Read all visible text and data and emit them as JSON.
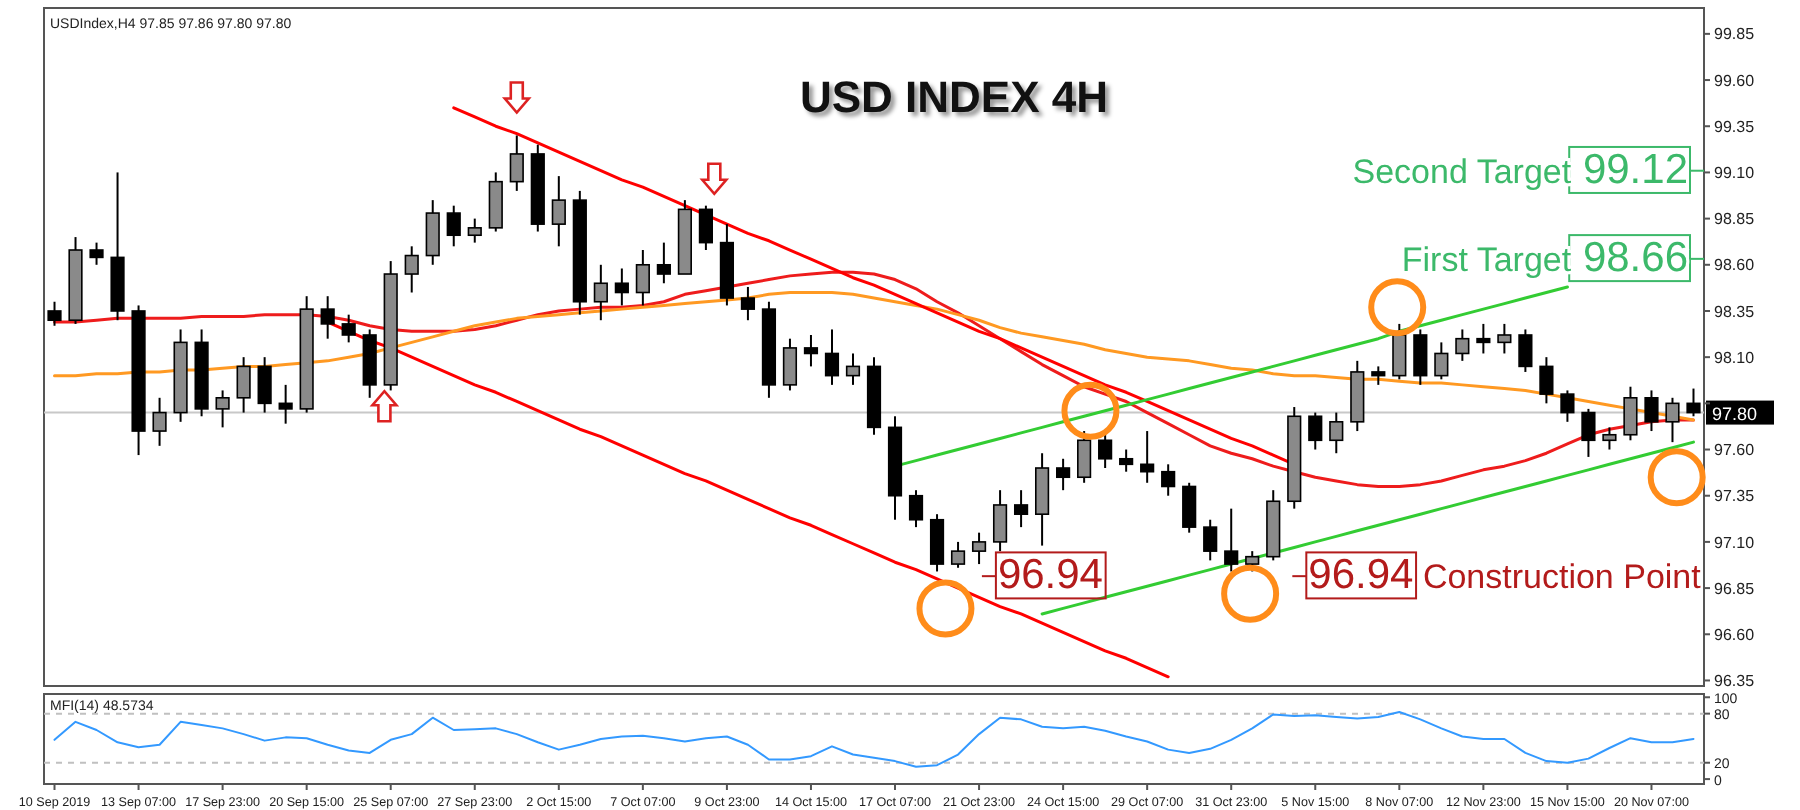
{
  "chart_data": [
    {
      "type": "candlestick",
      "title": "USD INDEX 4H",
      "color": "#000000",
      "ylim": [
        96.32,
        99.99
      ],
      "tick_labels": "y",
      "yticks": [
        99.85,
        {
          "value": 99.6,
          "label": "99.60"
        },
        99.35,
        {
          "value": 99.1,
          "label": "99.10"
        },
        98.85,
        {
          "value": 98.6,
          "label": "98.60"
        },
        98.35,
        {
          "value": 98.1,
          "label": "98.10"
        },
        {
          "value": 97.85,
          "label": null
        },
        {
          "value": 97.6,
          "label": "97.60"
        },
        97.35,
        {
          "value": 97.1,
          "label": "97.10"
        },
        96.85,
        {
          "value": 96.6,
          "label": "96.60"
        },
        96.35
      ],
      "categories": [
        null,
        null,
        null,
        null,
        null,
        null,
        null,
        null,
        null,
        null,
        null,
        null,
        null,
        null,
        null,
        null,
        null,
        null,
        null,
        null,
        null,
        null,
        null,
        null,
        null,
        null,
        null,
        null,
        null,
        null,
        null,
        null,
        null,
        null,
        null,
        null,
        null,
        null,
        null,
        null,
        null,
        null,
        null,
        null,
        null,
        null,
        null,
        null,
        null,
        null,
        null,
        null,
        null,
        null,
        null,
        null,
        null,
        null,
        null,
        null,
        null,
        null,
        null,
        null,
        null,
        null,
        null,
        null,
        null,
        null,
        null,
        null,
        null,
        null,
        null,
        null,
        null,
        null,
        null
      ],
      "ohlc": [
        [
          98.35,
          98.4,
          98.27,
          98.3
        ],
        [
          98.3,
          98.75,
          98.28,
          98.68
        ],
        [
          98.68,
          98.72,
          98.6,
          98.64
        ],
        [
          98.64,
          99.1,
          98.3,
          98.35
        ],
        [
          98.35,
          98.38,
          97.57,
          97.7
        ],
        [
          97.7,
          97.88,
          97.62,
          97.8
        ],
        [
          97.8,
          98.25,
          97.75,
          98.18
        ],
        [
          98.18,
          98.25,
          97.78,
          97.82
        ],
        [
          97.82,
          97.92,
          97.72,
          97.88
        ],
        [
          97.88,
          98.1,
          97.8,
          98.05
        ],
        [
          98.05,
          98.1,
          97.8,
          97.85
        ],
        [
          97.85,
          97.95,
          97.74,
          97.82
        ],
        [
          97.82,
          98.43,
          97.8,
          98.36
        ],
        [
          98.36,
          98.43,
          98.2,
          98.28
        ],
        [
          98.28,
          98.33,
          98.18,
          98.22
        ],
        [
          98.22,
          98.25,
          97.88,
          97.95
        ],
        [
          97.95,
          98.62,
          97.92,
          98.55
        ],
        [
          98.55,
          98.7,
          98.45,
          98.65
        ],
        [
          98.65,
          98.95,
          98.6,
          98.88
        ],
        [
          98.88,
          98.92,
          98.7,
          98.76
        ],
        [
          98.76,
          98.85,
          98.72,
          98.8
        ],
        [
          98.8,
          99.1,
          98.78,
          99.05
        ],
        [
          99.05,
          99.3,
          99.0,
          99.2
        ],
        [
          99.2,
          99.25,
          98.78,
          98.82
        ],
        [
          98.82,
          99.08,
          98.7,
          98.95
        ],
        [
          98.95,
          99.0,
          98.33,
          98.4
        ],
        [
          98.4,
          98.6,
          98.3,
          98.5
        ],
        [
          98.5,
          98.58,
          98.38,
          98.45
        ],
        [
          98.45,
          98.68,
          98.38,
          98.6
        ],
        [
          98.6,
          98.72,
          98.5,
          98.55
        ],
        [
          98.55,
          98.95,
          98.55,
          98.9
        ],
        [
          98.9,
          98.92,
          98.68,
          98.72
        ],
        [
          98.72,
          98.82,
          98.38,
          98.42
        ],
        [
          98.42,
          98.48,
          98.3,
          98.36
        ],
        [
          98.36,
          98.4,
          97.88,
          97.95
        ],
        [
          97.95,
          98.2,
          97.92,
          98.15
        ],
        [
          98.15,
          98.22,
          98.05,
          98.12
        ],
        [
          98.12,
          98.25,
          97.95,
          98.0
        ],
        [
          98.0,
          98.12,
          97.95,
          98.05
        ],
        [
          98.05,
          98.1,
          97.68,
          97.72
        ],
        [
          97.72,
          97.78,
          97.22,
          97.35
        ],
        [
          97.35,
          97.38,
          97.18,
          97.22
        ],
        [
          97.22,
          97.25,
          96.94,
          96.98
        ],
        [
          96.98,
          97.1,
          96.96,
          97.05
        ],
        [
          97.05,
          97.15,
          96.98,
          97.1
        ],
        [
          97.1,
          97.38,
          97.05,
          97.3
        ],
        [
          97.3,
          97.38,
          97.18,
          97.25
        ],
        [
          97.25,
          97.58,
          97.08,
          97.5
        ],
        [
          97.5,
          97.55,
          97.38,
          97.45
        ],
        [
          97.45,
          97.7,
          97.42,
          97.65
        ],
        [
          97.65,
          97.68,
          97.5,
          97.55
        ],
        [
          97.55,
          97.6,
          97.48,
          97.52
        ],
        [
          97.52,
          97.7,
          97.42,
          97.48
        ],
        [
          97.48,
          97.52,
          97.35,
          97.4
        ],
        [
          97.4,
          97.42,
          97.15,
          97.18
        ],
        [
          97.18,
          97.22,
          97.0,
          97.05
        ],
        [
          97.05,
          97.28,
          96.94,
          96.98
        ],
        [
          96.98,
          97.05,
          96.94,
          97.02
        ],
        [
          97.02,
          97.38,
          97.0,
          97.32
        ],
        [
          97.32,
          97.83,
          97.28,
          97.78
        ],
        [
          97.78,
          97.8,
          97.6,
          97.65
        ],
        [
          97.65,
          97.8,
          97.58,
          97.75
        ],
        [
          97.75,
          98.08,
          97.7,
          98.02
        ],
        [
          98.02,
          98.05,
          97.95,
          98.0
        ],
        [
          98.0,
          98.28,
          97.98,
          98.22
        ],
        [
          98.22,
          98.25,
          97.95,
          98.0
        ],
        [
          98.0,
          98.18,
          97.98,
          98.12
        ],
        [
          98.12,
          98.25,
          98.08,
          98.2
        ],
        [
          98.2,
          98.28,
          98.12,
          98.18
        ],
        [
          98.18,
          98.28,
          98.12,
          98.22
        ],
        [
          98.22,
          98.25,
          98.02,
          98.05
        ],
        [
          98.05,
          98.1,
          97.85,
          97.9
        ],
        [
          97.9,
          97.92,
          97.75,
          97.8
        ],
        [
          97.8,
          97.82,
          97.56,
          97.65
        ],
        [
          97.65,
          97.72,
          97.6,
          97.68
        ],
        [
          97.68,
          97.94,
          97.65,
          97.88
        ],
        [
          97.88,
          97.92,
          97.7,
          97.75
        ],
        [
          97.75,
          97.88,
          97.64,
          97.85
        ],
        [
          97.85,
          97.93,
          97.78,
          97.8
        ]
      ],
      "series": [
        {
          "type": "line",
          "color": "#ee1c1c",
          "values": [
            98.29,
            98.29,
            98.3,
            98.31,
            98.31,
            98.31,
            98.31,
            98.32,
            98.32,
            98.32,
            98.33,
            98.33,
            98.33,
            98.32,
            98.3,
            98.27,
            98.25,
            98.24,
            98.24,
            98.24,
            98.25,
            98.27,
            98.3,
            98.33,
            98.35,
            98.36,
            98.37,
            98.37,
            98.38,
            98.4,
            98.44,
            98.46,
            98.48,
            98.5,
            98.52,
            98.54,
            98.55,
            98.56,
            98.56,
            98.55,
            98.52,
            98.47,
            98.4,
            98.34,
            98.27,
            98.2,
            98.13,
            98.06,
            98.0,
            97.94,
            97.9,
            97.86,
            97.8,
            97.74,
            97.68,
            97.62,
            97.58,
            97.55,
            97.51,
            97.48,
            97.45,
            97.43,
            97.41,
            97.4,
            97.4,
            97.41,
            97.43,
            97.46,
            97.49,
            97.51,
            97.54,
            97.58,
            97.63,
            97.68,
            97.71,
            97.73,
            97.75,
            97.76,
            97.76
          ]
        },
        {
          "type": "line",
          "color": "#ff9922",
          "values": [
            98.0,
            98.0,
            98.01,
            98.01,
            98.02,
            98.02,
            98.03,
            98.03,
            98.04,
            98.05,
            98.05,
            98.06,
            98.07,
            98.08,
            98.1,
            98.12,
            98.15,
            98.18,
            98.21,
            98.24,
            98.27,
            98.29,
            98.31,
            98.32,
            98.33,
            98.34,
            98.35,
            98.36,
            98.37,
            98.38,
            98.39,
            98.4,
            98.41,
            98.42,
            98.44,
            98.45,
            98.45,
            98.45,
            98.44,
            98.42,
            98.4,
            98.38,
            98.36,
            98.33,
            98.3,
            98.26,
            98.23,
            98.21,
            98.19,
            98.17,
            98.14,
            98.12,
            98.1,
            98.09,
            98.08,
            98.06,
            98.04,
            98.03,
            98.01,
            98.0,
            98.0,
            97.99,
            97.98,
            97.98,
            97.97,
            97.96,
            97.96,
            97.95,
            97.94,
            97.93,
            97.92,
            97.9,
            97.88,
            97.86,
            97.84,
            97.82,
            97.8,
            97.78,
            97.76
          ]
        },
        {
          "type": "line",
          "color": "#ff0000",
          "values": [
            null,
            null,
            null,
            null,
            null,
            null,
            null,
            null,
            null,
            null,
            null,
            null,
            null,
            null,
            null,
            null,
            null,
            null,
            null,
            99.45,
            99.4,
            99.35,
            99.31,
            99.26,
            99.21,
            99.16,
            99.11,
            99.06,
            99.02,
            98.97,
            98.92,
            98.87,
            98.82,
            98.77,
            98.73,
            98.68,
            98.63,
            98.58,
            98.53,
            98.49,
            98.44,
            98.39,
            98.34,
            98.29,
            98.24,
            98.2,
            98.15,
            98.1,
            98.05,
            98.0,
            97.95,
            97.91,
            97.86,
            97.81,
            97.76,
            97.71,
            97.66,
            97.62,
            97.57,
            97.52,
            null,
            null,
            null,
            null,
            null,
            null,
            null,
            null,
            null,
            null,
            null,
            null,
            null,
            null,
            null,
            null,
            null,
            null,
            null
          ]
        },
        {
          "type": "line",
          "color": "#ff0000",
          "values": [
            null,
            null,
            null,
            null,
            null,
            null,
            null,
            null,
            null,
            null,
            null,
            null,
            null,
            98.29,
            98.24,
            98.19,
            98.15,
            98.1,
            98.05,
            98.0,
            97.95,
            97.91,
            97.86,
            97.81,
            97.76,
            97.71,
            97.67,
            97.62,
            97.57,
            97.52,
            97.47,
            97.43,
            97.38,
            97.33,
            97.28,
            97.23,
            97.19,
            97.14,
            97.09,
            97.04,
            96.99,
            96.95,
            96.9,
            96.85,
            96.8,
            96.75,
            96.71,
            96.66,
            96.61,
            96.56,
            96.51,
            96.47,
            96.42,
            96.37,
            null,
            null,
            null,
            null,
            null,
            null,
            null,
            null,
            null,
            null,
            null,
            null,
            null,
            null,
            null,
            null,
            null,
            null,
            null,
            null,
            null,
            null,
            null,
            null,
            null
          ]
        },
        {
          "type": "line",
          "color": "#33cc33",
          "values": [
            null,
            null,
            null,
            null,
            null,
            null,
            null,
            null,
            null,
            null,
            null,
            null,
            null,
            null,
            null,
            null,
            null,
            null,
            null,
            null,
            null,
            null,
            null,
            null,
            null,
            null,
            null,
            null,
            null,
            null,
            null,
            null,
            null,
            null,
            null,
            null,
            null,
            null,
            null,
            null,
            97.51,
            97.54,
            97.57,
            97.6,
            97.63,
            97.66,
            97.69,
            97.72,
            97.75,
            97.78,
            97.81,
            97.84,
            97.87,
            97.9,
            97.93,
            97.96,
            97.99,
            98.02,
            98.05,
            98.08,
            98.11,
            98.14,
            98.17,
            98.2,
            98.24,
            98.27,
            98.3,
            98.33,
            98.36,
            98.39,
            98.42,
            98.45,
            98.48,
            null,
            null,
            null,
            null,
            null,
            null
          ]
        },
        {
          "type": "line",
          "color": "#33cc33",
          "values": [
            null,
            null,
            null,
            null,
            null,
            null,
            null,
            null,
            null,
            null,
            null,
            null,
            null,
            null,
            null,
            null,
            null,
            null,
            null,
            null,
            null,
            null,
            null,
            null,
            null,
            null,
            null,
            null,
            null,
            null,
            null,
            null,
            null,
            null,
            null,
            null,
            null,
            null,
            null,
            null,
            null,
            null,
            null,
            null,
            null,
            null,
            null,
            96.71,
            96.74,
            96.77,
            96.8,
            96.83,
            96.86,
            96.89,
            96.92,
            96.95,
            96.98,
            97.01,
            97.04,
            97.07,
            97.1,
            97.13,
            97.16,
            97.19,
            97.22,
            97.25,
            97.28,
            97.31,
            97.34,
            97.37,
            97.4,
            97.43,
            97.46,
            97.49,
            97.52,
            97.55,
            97.58,
            97.61,
            97.64
          ]
        }
      ],
      "ref_lines": [
        {
          "axis": "y",
          "value": 97.8,
          "label": "97.80",
          "color": "#c8c8c8"
        }
      ],
      "annotations": [
        "USDIndex,H4 97.85 97.86 97.80 97.80",
        "Second Target 99.12",
        "First Target 98.66",
        "96.94",
        "96.94 Construction Point"
      ]
    },
    {
      "type": "line",
      "title": "MFI(14) 48.5734",
      "color": "#3399ff",
      "ylim": [
        -6,
        104
      ],
      "yticks": [
        0,
        20,
        80,
        100
      ],
      "categories": [
        "10 Sep 2019",
        null,
        null,
        null,
        "13 Sep 07:00",
        null,
        null,
        null,
        "17 Sep 23:00",
        null,
        null,
        null,
        "20 Sep 15:00",
        null,
        null,
        null,
        "25 Sep 07:00",
        null,
        null,
        null,
        "27 Sep 23:00",
        null,
        null,
        null,
        "2 Oct 15:00",
        null,
        null,
        null,
        "7 Oct 07:00",
        null,
        null,
        null,
        "9 Oct 23:00",
        null,
        null,
        null,
        "14 Oct 15:00",
        null,
        null,
        null,
        "17 Oct 07:00",
        null,
        null,
        null,
        "21 Oct 23:00",
        null,
        null,
        null,
        "24 Oct 15:00",
        null,
        null,
        null,
        "29 Oct 07:00",
        null,
        null,
        null,
        "31 Oct 23:00",
        null,
        null,
        null,
        "5 Nov 15:00",
        null,
        null,
        null,
        "8 Nov 07:00",
        null,
        null,
        null,
        "12 Nov 23:00",
        null,
        null,
        null,
        "15 Nov 15:00",
        null,
        null,
        null,
        "20 Nov 07:00",
        null,
        null
      ],
      "values": [
        48,
        70,
        60,
        45,
        39,
        42,
        70,
        66,
        62,
        55,
        47,
        51,
        50,
        42,
        35,
        32,
        48,
        55,
        75,
        60,
        61,
        62,
        55,
        45,
        36,
        42,
        49,
        52,
        53,
        50,
        46,
        50,
        52,
        42,
        24,
        24,
        28,
        40,
        30,
        26,
        22,
        15,
        17,
        30,
        55,
        75,
        73,
        64,
        62,
        64,
        59,
        52,
        46,
        36,
        32,
        37,
        48,
        62,
        79,
        77,
        78,
        76,
        74,
        76,
        82,
        73,
        62,
        52,
        49,
        49,
        32,
        22,
        20,
        25,
        38,
        50,
        45,
        45,
        49
      ],
      "ref_lines": [
        {
          "axis": "y",
          "value": 80,
          "color": "#c0c0c0",
          "line_style": "dashed"
        },
        {
          "axis": "y",
          "value": 20,
          "color": "#c0c0c0",
          "line_style": "dashed"
        }
      ]
    }
  ]
}
